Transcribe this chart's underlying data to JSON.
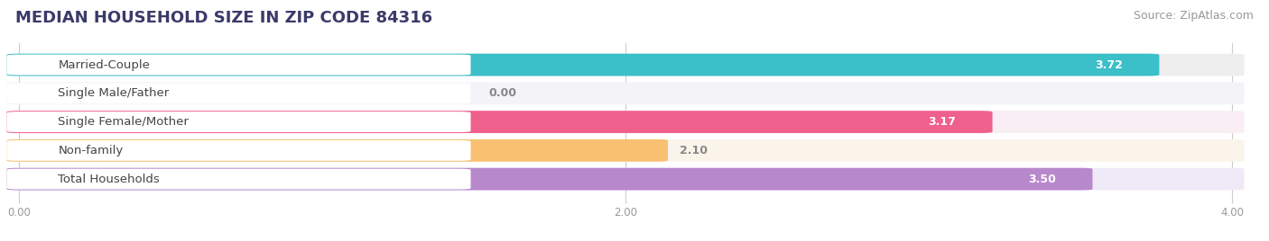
{
  "title": "MEDIAN HOUSEHOLD SIZE IN ZIP CODE 84316",
  "source": "Source: ZipAtlas.com",
  "categories": [
    "Married-Couple",
    "Single Male/Father",
    "Single Female/Mother",
    "Non-family",
    "Total Households"
  ],
  "values": [
    3.72,
    0.0,
    3.17,
    2.1,
    3.5
  ],
  "bar_colors": [
    "#3bbfc8",
    "#a0b4e8",
    "#f0608c",
    "#f8c070",
    "#b888cc"
  ],
  "bar_bg_colors": [
    "#eeeeee",
    "#f4f4f8",
    "#f8eef4",
    "#faf4ea",
    "#f0eaf8"
  ],
  "row_bg_color": "#f0f0f0",
  "xlim": [
    0,
    4.0
  ],
  "xticks": [
    0.0,
    2.0,
    4.0
  ],
  "xtick_labels": [
    "0.00",
    "2.00",
    "4.00"
  ],
  "title_fontsize": 13,
  "source_fontsize": 9,
  "label_fontsize": 9.5,
  "value_fontsize": 9,
  "background_color": "#ffffff",
  "title_color": "#3a3a6a",
  "label_text_color": "#444444",
  "value_color_inside": "#ffffff",
  "value_color_outside": "#888888"
}
